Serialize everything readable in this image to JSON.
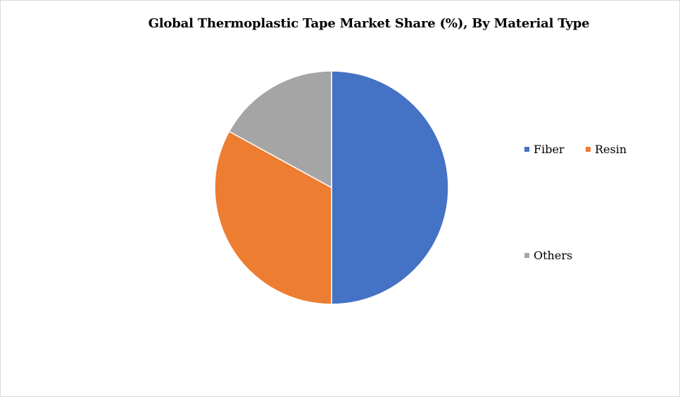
{
  "chart_data": {
    "type": "pie",
    "title": "Global Thermoplastic Tape Market Share (%), By Material Type",
    "categories": [
      "Fiber",
      "Resin",
      "Others"
    ],
    "values": [
      50,
      33,
      17
    ],
    "colors": [
      "#4472C4",
      "#ED7D31",
      "#A5A5A5"
    ],
    "legend_position": "right"
  }
}
